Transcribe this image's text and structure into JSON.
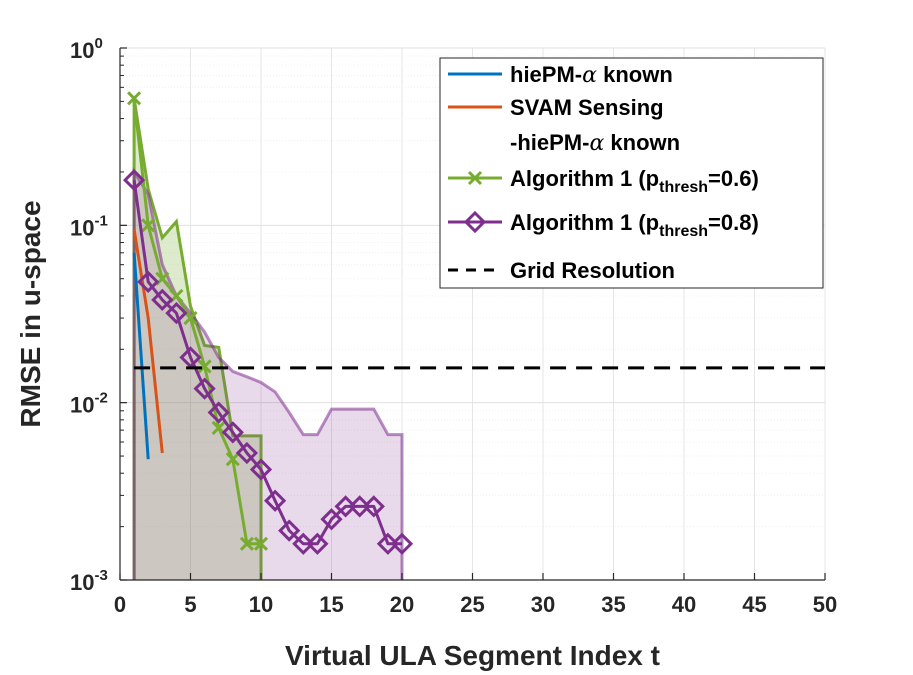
{
  "chart_data": {
    "type": "line",
    "xlabel": "Virtual ULA Segment Index t",
    "ylabel": "RMSE in u-space",
    "xlim": [
      0,
      50
    ],
    "ylim": [
      0.001,
      1
    ],
    "yscale": "log",
    "grid": true,
    "legend_position": "top-right",
    "xticks": [
      "0",
      "5",
      "10",
      "15",
      "20",
      "25",
      "30",
      "35",
      "40",
      "45",
      "50"
    ],
    "yticks": [
      {
        "base": "10",
        "exp": "0"
      },
      {
        "base": "10",
        "exp": "-1"
      },
      {
        "base": "10",
        "exp": "-2"
      },
      {
        "base": "10",
        "exp": "-3"
      }
    ],
    "series": [
      {
        "name": "hiePM-α known",
        "legend_parts": {
          "pre": "hiePM-",
          "alpha": "α",
          "post": " known"
        },
        "color": "#0072BD",
        "marker": "none",
        "x": [
          1,
          2
        ],
        "y": [
          0.07,
          0.0048
        ]
      },
      {
        "name": "SVAM Sensing -hiePM-α known",
        "legend_parts": {
          "line1": "SVAM Sensing",
          "pre": "-hiePM-",
          "alpha": "α",
          "post": " known"
        },
        "color": "#D95319",
        "marker": "none",
        "x": [
          1,
          2,
          3
        ],
        "y": [
          0.095,
          0.03,
          0.0052
        ]
      },
      {
        "name": "Algorithm 1 (pthresh=0.6)",
        "legend_parts": {
          "pre": "Algorithm 1 (p",
          "sub": "thresh",
          "post": "=0.6)"
        },
        "color": "#77AC30",
        "marker": "x",
        "x": [
          1,
          2,
          3,
          4,
          5,
          6,
          7,
          8,
          9,
          10
        ],
        "y": [
          0.52,
          0.1,
          0.05,
          0.04,
          0.03,
          0.016,
          0.0072,
          0.0048,
          0.0016,
          0.0016
        ]
      },
      {
        "name": "Algorithm 1 (pthresh=0.8)",
        "legend_parts": {
          "pre": "Algorithm 1 (p",
          "sub": "thresh",
          "post": "=0.8)"
        },
        "color": "#7E2F8E",
        "marker": "diamond",
        "x": [
          1,
          2,
          3,
          4,
          5,
          6,
          7,
          8,
          9,
          10,
          11,
          12,
          13,
          14,
          15,
          16,
          17,
          18,
          19,
          20
        ],
        "y": [
          0.18,
          0.048,
          0.038,
          0.032,
          0.018,
          0.012,
          0.0088,
          0.0068,
          0.0052,
          0.0042,
          0.0028,
          0.0019,
          0.0016,
          0.0016,
          0.0022,
          0.0026,
          0.0026,
          0.0026,
          0.0016,
          0.0016
        ]
      },
      {
        "name": "Grid Resolution",
        "color": "#000000",
        "marker": "none",
        "dashed": true,
        "x": [
          1,
          50
        ],
        "y": [
          0.0157,
          0.0157
        ]
      }
    ],
    "shaded_bands": [
      {
        "color": "#77AC30",
        "opacity": 0.25,
        "upper": {
          "x": [
            1,
            2,
            3,
            4,
            5,
            6,
            7,
            8,
            9,
            10
          ],
          "y": [
            0.52,
            0.16,
            0.085,
            0.105,
            0.035,
            0.021,
            0.0205,
            0.0065,
            0.0065,
            0.0065
          ]
        }
      },
      {
        "color": "#7E2F8E",
        "opacity": 0.18,
        "upper": {
          "x": [
            1,
            2,
            3,
            4,
            5,
            6,
            7,
            8,
            9,
            10,
            11,
            12,
            13,
            14,
            15,
            16,
            17,
            18,
            19,
            20
          ],
          "y": [
            0.2,
            0.15,
            0.06,
            0.04,
            0.032,
            0.025,
            0.018,
            0.015,
            0.014,
            0.013,
            0.0115,
            0.0088,
            0.0066,
            0.0066,
            0.0092,
            0.0092,
            0.0092,
            0.0092,
            0.0066,
            0.0066
          ]
        }
      }
    ]
  }
}
